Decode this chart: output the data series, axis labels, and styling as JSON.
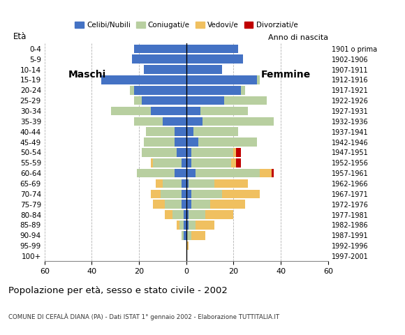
{
  "age_groups": [
    "0-4",
    "5-9",
    "10-14",
    "15-19",
    "20-24",
    "25-29",
    "30-34",
    "35-39",
    "40-44",
    "45-49",
    "50-54",
    "55-59",
    "60-64",
    "65-69",
    "70-74",
    "75-79",
    "80-84",
    "85-89",
    "90-94",
    "95-99",
    "100+"
  ],
  "birth_years": [
    "1997-2001",
    "1992-1996",
    "1987-1991",
    "1982-1986",
    "1977-1981",
    "1972-1976",
    "1967-1971",
    "1962-1966",
    "1957-1961",
    "1952-1956",
    "1947-1951",
    "1942-1946",
    "1937-1941",
    "1932-1936",
    "1927-1931",
    "1922-1926",
    "1917-1921",
    "1912-1916",
    "1907-1911",
    "1902-1906",
    "1901 o prima"
  ],
  "males": {
    "celibe": [
      22,
      23,
      18,
      36,
      22,
      19,
      15,
      10,
      5,
      5,
      4,
      2,
      5,
      2,
      2,
      2,
      1,
      1,
      1,
      0,
      0
    ],
    "coniugato": [
      0,
      0,
      0,
      0,
      2,
      3,
      17,
      12,
      12,
      13,
      15,
      12,
      16,
      8,
      9,
      7,
      5,
      2,
      1,
      0,
      0
    ],
    "vedovo": [
      0,
      0,
      0,
      0,
      0,
      0,
      0,
      0,
      0,
      0,
      0,
      1,
      0,
      3,
      4,
      5,
      3,
      1,
      0,
      0,
      0
    ],
    "divorziato": [
      0,
      0,
      0,
      0,
      0,
      0,
      0,
      0,
      0,
      0,
      0,
      0,
      0,
      0,
      0,
      0,
      0,
      0,
      0,
      0,
      0
    ]
  },
  "females": {
    "nubile": [
      22,
      24,
      15,
      30,
      23,
      16,
      6,
      7,
      3,
      5,
      2,
      2,
      4,
      1,
      2,
      2,
      1,
      1,
      0,
      0,
      0
    ],
    "coniugata": [
      0,
      0,
      0,
      1,
      2,
      18,
      20,
      30,
      19,
      25,
      18,
      17,
      27,
      11,
      13,
      8,
      7,
      3,
      2,
      0,
      0
    ],
    "vedova": [
      0,
      0,
      0,
      0,
      0,
      0,
      0,
      0,
      0,
      0,
      1,
      2,
      5,
      14,
      16,
      15,
      12,
      8,
      6,
      1,
      0
    ],
    "divorziata": [
      0,
      0,
      0,
      0,
      0,
      0,
      0,
      0,
      0,
      0,
      2,
      2,
      1,
      0,
      0,
      0,
      0,
      0,
      0,
      0,
      0
    ]
  },
  "colors": {
    "celibe_nubile": "#4472c4",
    "coniugato_coniugata": "#b8cfa0",
    "vedovo_vedova": "#f0c060",
    "divorziato_divorziata": "#c00000"
  },
  "xlim": 60,
  "title": "Popolazione per età, sesso e stato civile - 2002",
  "subtitle": "COMUNE DI CEFALÀ DIANA (PA) - Dati ISTAT 1° gennaio 2002 - Elaborazione TUTTITALIA.IT",
  "ylabel_left": "Età",
  "ylabel_right": "Anno di nascita",
  "legend_labels": [
    "Celibi/Nubili",
    "Coniugati/e",
    "Vedovi/e",
    "Divorziati/e"
  ],
  "label_maschi": "Maschi",
  "label_femmine": "Femmine",
  "xtick_step": 20
}
